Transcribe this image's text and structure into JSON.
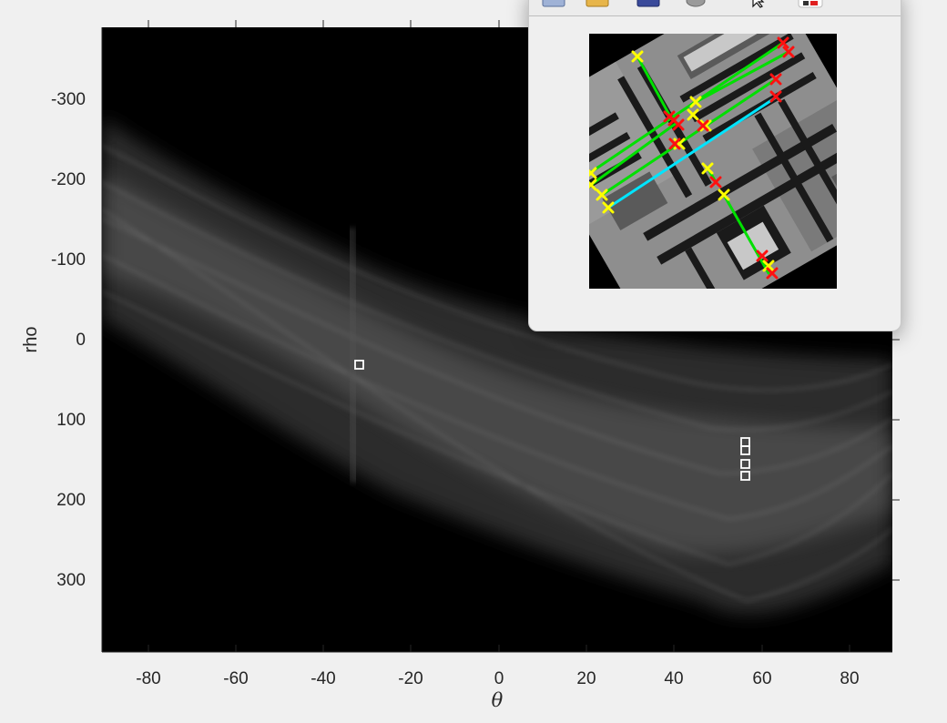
{
  "figure": {
    "axes": {
      "xlabel": "θ",
      "ylabel": "rho",
      "xticks": [
        "-80",
        "-60",
        "-40",
        "-20",
        "0",
        "20",
        "40",
        "60",
        "80"
      ],
      "yticks": [
        "-300",
        "-200",
        "-100",
        "0",
        "100",
        "200",
        "300"
      ]
    },
    "peak_marker_color": "#ffffff"
  },
  "chart_data": {
    "type": "heatmap",
    "title": "",
    "xlabel": "θ",
    "ylabel": "rho",
    "xlim": [
      -90,
      89
    ],
    "ylim": [
      -390,
      390
    ],
    "y_direction": "reversed",
    "colormap": "gray",
    "grid": false,
    "peaks": [
      {
        "theta": -32,
        "rho": 33
      },
      {
        "theta": 56,
        "rho": 130
      },
      {
        "theta": 56,
        "rho": 140
      },
      {
        "theta": 56,
        "rho": 156
      },
      {
        "theta": 56,
        "rho": 170
      }
    ]
  },
  "popup": {
    "toolbar_icons": [
      "new-figure-icon",
      "open-file-icon",
      "save-icon",
      "print-icon",
      "pointer-icon",
      "insert-colorbar-icon"
    ],
    "line_color": "#00e000",
    "longest_line_color": "#00e5ff",
    "start_marker_color": "#ffff00",
    "end_marker_color": "#ff0000"
  }
}
